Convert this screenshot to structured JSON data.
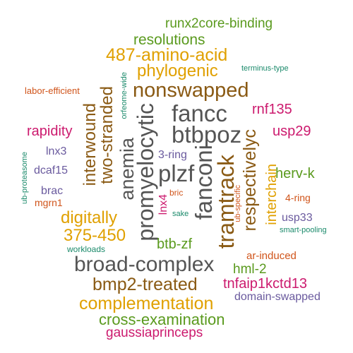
{
  "words": [
    {
      "text": "runx2core-binding",
      "color": "#5a9a1e"
    },
    {
      "text": "resolutions",
      "color": "#5a9a1e"
    },
    {
      "text": "487-amino-acid",
      "color": "#e0a000"
    },
    {
      "text": "phylogenic",
      "color": "#e0a000"
    },
    {
      "text": "terminus-type",
      "color": "#1b8a6b"
    },
    {
      "text": "nonswapped",
      "color": "#8a5a14"
    },
    {
      "text": "labor-efficient",
      "color": "#d0541a"
    },
    {
      "text": "orfeome-wide",
      "color": "#1b8a6b"
    },
    {
      "text": "fancc",
      "color": "#555555"
    },
    {
      "text": "btbpoz",
      "color": "#555555"
    },
    {
      "text": "rnf135",
      "color": "#cc1a6e"
    },
    {
      "text": "usp29",
      "color": "#cc1a6e"
    },
    {
      "text": "rapidity",
      "color": "#cc1a6e"
    },
    {
      "text": "interwound",
      "color": "#8a5a14"
    },
    {
      "text": "two-stranded",
      "color": "#8a5a14"
    },
    {
      "text": "anemia",
      "color": "#555555"
    },
    {
      "text": "promyelocytic",
      "color": "#555555"
    },
    {
      "text": "plzf",
      "color": "#555555"
    },
    {
      "text": "fanconi",
      "color": "#555555"
    },
    {
      "text": "tramtrack",
      "color": "#8a5a14"
    },
    {
      "text": "respectivelyc",
      "color": "#8a5a14"
    },
    {
      "text": "interchain",
      "color": "#e0a000"
    },
    {
      "text": "3-ring",
      "color": "#6a5a9e"
    },
    {
      "text": "herv-k",
      "color": "#5a9a1e"
    },
    {
      "text": "lnx3",
      "color": "#6a5a9e"
    },
    {
      "text": "dcaf15",
      "color": "#6a5a9e"
    },
    {
      "text": "ub-proteasome",
      "color": "#1b8a6b"
    },
    {
      "text": "brac",
      "color": "#6a5a9e"
    },
    {
      "text": "mgrn1",
      "color": "#d0541a"
    },
    {
      "text": "lnx4",
      "color": "#cc1a6e"
    },
    {
      "text": "bric",
      "color": "#d0541a"
    },
    {
      "text": "sake",
      "color": "#1b8a6b"
    },
    {
      "text": "ub-specific",
      "color": "#d0541a"
    },
    {
      "text": "4-ring",
      "color": "#d0541a"
    },
    {
      "text": "usp33",
      "color": "#6a5a9e"
    },
    {
      "text": "smart-pooling",
      "color": "#1b8a6b"
    },
    {
      "text": "digitally",
      "color": "#e0a000"
    },
    {
      "text": "375-450",
      "color": "#e0a000"
    },
    {
      "text": "btb-zf",
      "color": "#5a9a1e"
    },
    {
      "text": "workloads",
      "color": "#1b8a6b"
    },
    {
      "text": "ar-induced",
      "color": "#d0541a"
    },
    {
      "text": "broad-complex",
      "color": "#555555"
    },
    {
      "text": "hml-2",
      "color": "#5a9a1e"
    },
    {
      "text": "bmp2-treated",
      "color": "#8a5a14"
    },
    {
      "text": "tnfaip1kctd13",
      "color": "#cc1a6e"
    },
    {
      "text": "domain-swapped",
      "color": "#6a5a9e"
    },
    {
      "text": "complementation",
      "color": "#e0a000"
    },
    {
      "text": "cross-examination",
      "color": "#5a9a1e"
    },
    {
      "text": "gaussiaprinceps",
      "color": "#cc1a6e"
    }
  ]
}
